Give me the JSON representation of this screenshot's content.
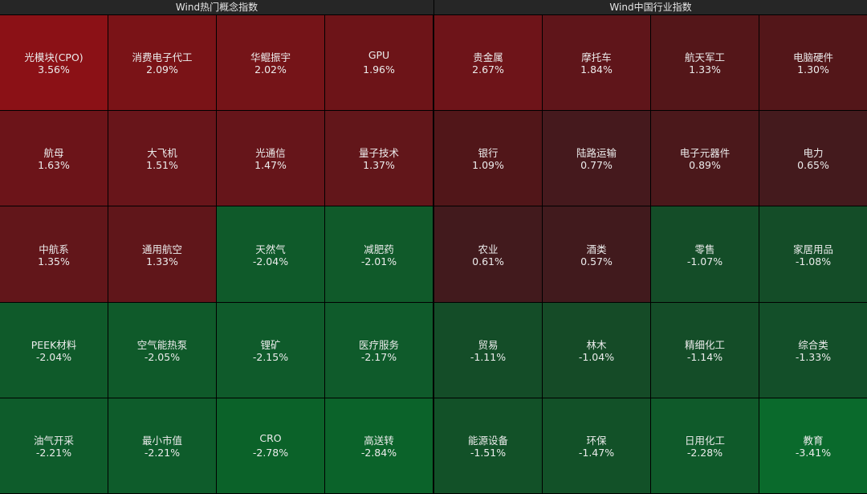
{
  "panels": [
    {
      "title": "Wind热门概念指数",
      "tiles": [
        {
          "name": "光模块(CPO)",
          "change": "3.56%",
          "color": "#8b1116"
        },
        {
          "name": "消费电子代工",
          "change": "2.09%",
          "color": "#7a1317"
        },
        {
          "name": "华鲲振宇",
          "change": "2.02%",
          "color": "#751418"
        },
        {
          "name": "GPU",
          "change": "1.96%",
          "color": "#6d1418"
        },
        {
          "name": "航母",
          "change": "1.63%",
          "color": "#6c1419"
        },
        {
          "name": "大飞机",
          "change": "1.51%",
          "color": "#68151a"
        },
        {
          "name": "光通信",
          "change": "1.47%",
          "color": "#66151a"
        },
        {
          "name": "量子技术",
          "change": "1.37%",
          "color": "#62161a"
        },
        {
          "name": "中航系",
          "change": "1.35%",
          "color": "#62161a"
        },
        {
          "name": "通用航空",
          "change": "1.33%",
          "color": "#60161a"
        },
        {
          "name": "天然气",
          "change": "-2.04%",
          "color": "#0f5a2a"
        },
        {
          "name": "减肥药",
          "change": "-2.01%",
          "color": "#105a2a"
        },
        {
          "name": "PEEK材料",
          "change": "-2.04%",
          "color": "#0f5a2a"
        },
        {
          "name": "空气能热泵",
          "change": "-2.05%",
          "color": "#0f5a2a"
        },
        {
          "name": "锂矿",
          "change": "-2.15%",
          "color": "#0f5b2b"
        },
        {
          "name": "医疗服务",
          "change": "-2.17%",
          "color": "#0f5b2b"
        },
        {
          "name": "油气开采",
          "change": "-2.21%",
          "color": "#0e5c2b"
        },
        {
          "name": "最小市值",
          "change": "-2.21%",
          "color": "#0e5c2b"
        },
        {
          "name": "CRO",
          "change": "-2.78%",
          "color": "#0b6229"
        },
        {
          "name": "高送转",
          "change": "-2.84%",
          "color": "#0b632a"
        }
      ]
    },
    {
      "title": "Wind中国行业指数",
      "tiles": [
        {
          "name": "贵金属",
          "change": "2.67%",
          "color": "#6e1419"
        },
        {
          "name": "摩托车",
          "change": "1.84%",
          "color": "#5f151a"
        },
        {
          "name": "航天军工",
          "change": "1.33%",
          "color": "#541619"
        },
        {
          "name": "电脑硬件",
          "change": "1.30%",
          "color": "#531619"
        },
        {
          "name": "银行",
          "change": "1.09%",
          "color": "#511619"
        },
        {
          "name": "陆路运输",
          "change": "0.77%",
          "color": "#45191d"
        },
        {
          "name": "电子元器件",
          "change": "0.89%",
          "color": "#4b181b"
        },
        {
          "name": "电力",
          "change": "0.65%",
          "color": "#441a1d"
        },
        {
          "name": "农业",
          "change": "0.61%",
          "color": "#421a1d"
        },
        {
          "name": "酒类",
          "change": "0.57%",
          "color": "#411a1d"
        },
        {
          "name": "零售",
          "change": "-1.07%",
          "color": "#144d28"
        },
        {
          "name": "家居用品",
          "change": "-1.08%",
          "color": "#144d28"
        },
        {
          "name": "贸易",
          "change": "-1.11%",
          "color": "#144d28"
        },
        {
          "name": "林木",
          "change": "-1.04%",
          "color": "#154b27"
        },
        {
          "name": "精细化工",
          "change": "-1.14%",
          "color": "#144d28"
        },
        {
          "name": "综合类",
          "change": "-1.33%",
          "color": "#134f29"
        },
        {
          "name": "能源设备",
          "change": "-1.51%",
          "color": "#125128"
        },
        {
          "name": "环保",
          "change": "-1.47%",
          "color": "#125128"
        },
        {
          "name": "日用化工",
          "change": "-2.28%",
          "color": "#0f5a2a"
        },
        {
          "name": "教育",
          "change": "-3.41%",
          "color": "#0a6a2c"
        }
      ]
    }
  ]
}
